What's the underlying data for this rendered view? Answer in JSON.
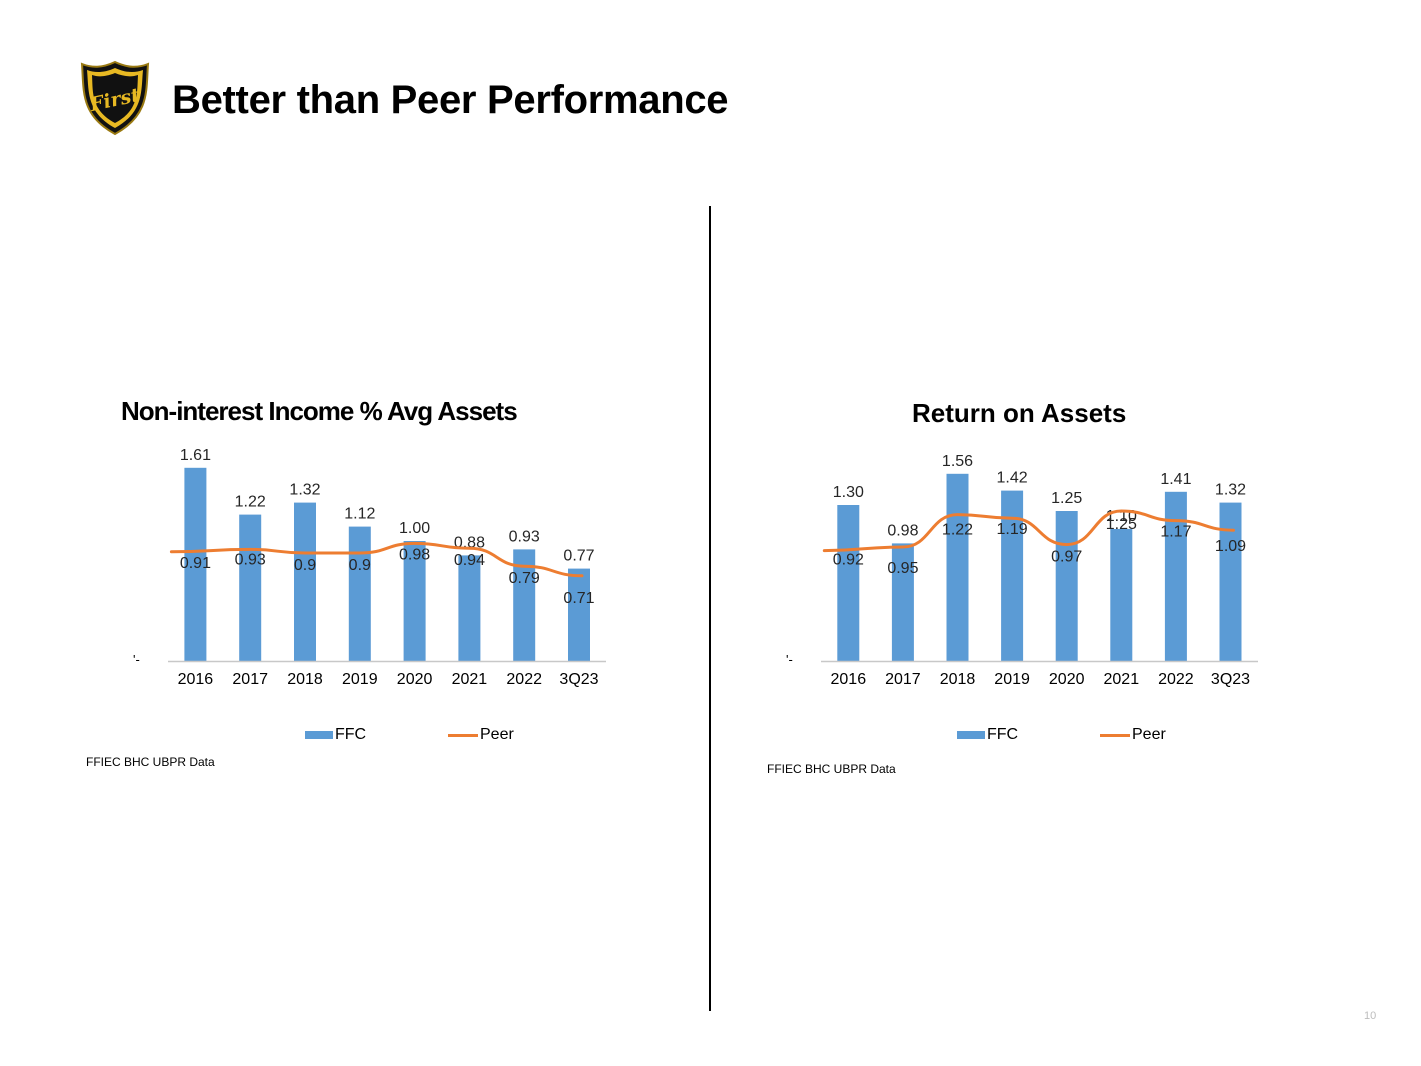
{
  "header": {
    "title": "Better than Peer Performance",
    "logo_text": "First"
  },
  "colors": {
    "ffc": "#5B9BD5",
    "peer": "#ED7D31",
    "axis": "#c8c8c8",
    "logo_gold": "#E8B923",
    "logo_dark": "#111111"
  },
  "chart_data": [
    {
      "type": "bar",
      "title": "Non-interest Income % Avg Assets",
      "categories": [
        "2016",
        "2017",
        "2018",
        "2019",
        "2020",
        "2021",
        "2022",
        "3Q23"
      ],
      "series": [
        {
          "name": "FFC",
          "type": "bar",
          "values": [
            1.61,
            1.22,
            1.32,
            1.12,
            1.0,
            0.88,
            0.93,
            0.77
          ],
          "labels": [
            "1.61",
            "1.22",
            "1.32",
            "1.12",
            "1.00",
            "0.88",
            "0.93",
            "0.77"
          ]
        },
        {
          "name": "Peer",
          "type": "line",
          "values": [
            0.91,
            0.93,
            0.9,
            0.9,
            0.98,
            0.94,
            0.79,
            0.71
          ],
          "labels": [
            "0.91",
            "0.93",
            "0.9",
            "0.9",
            "0.98",
            "0.94",
            "0.79",
            "0.71"
          ]
        }
      ],
      "y_axis_label": "'-",
      "xlabel": "",
      "ylabel": "",
      "ylim": [
        0,
        1.7
      ],
      "legend": "bottom",
      "source": "FFIEC BHC UBPR Data"
    },
    {
      "type": "bar",
      "title": "Return on Assets",
      "categories": [
        "2016",
        "2017",
        "2018",
        "2019",
        "2020",
        "2021",
        "2022",
        "3Q23"
      ],
      "series": [
        {
          "name": "FFC",
          "type": "bar",
          "values": [
            1.3,
            0.98,
            1.56,
            1.42,
            1.25,
            1.1,
            1.41,
            1.32
          ],
          "labels": [
            "1.30",
            "0.98",
            "1.56",
            "1.42",
            "1.25",
            "1.10",
            "1.41",
            "1.32"
          ]
        },
        {
          "name": "Peer",
          "type": "line",
          "values": [
            0.92,
            0.95,
            1.22,
            1.19,
            0.97,
            1.25,
            1.17,
            1.09
          ],
          "labels": [
            "0.92",
            "0.95",
            "1.22",
            "1.19",
            "0.97",
            "1.25",
            "1.17",
            "1.09"
          ]
        }
      ],
      "y_axis_label": "'-",
      "xlabel": "",
      "ylabel": "",
      "ylim": [
        0,
        1.7
      ],
      "legend": "bottom",
      "source": "FFIEC BHC UBPR Data"
    }
  ],
  "page_number": "10"
}
